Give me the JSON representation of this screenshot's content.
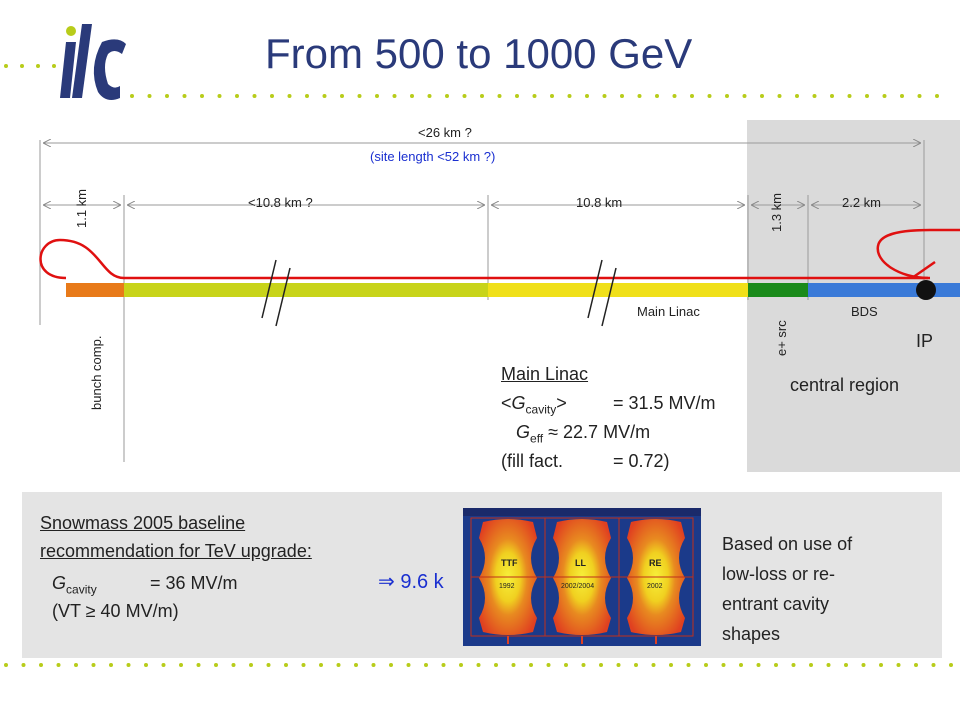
{
  "title": "From 500 to 1000 GeV",
  "logo_text": "ilc",
  "colors": {
    "title": "#2a3a7a",
    "beam_line": "#e01010",
    "bunch_comp": "#e87a1a",
    "main_linac_upgrade": "#c8d41a",
    "main_linac": "#f0e01a",
    "positron_source": "#1a8a1a",
    "bds": "#3a7ad8",
    "dots": "#b8cc1a",
    "highlight_text": "#1a2fd0"
  },
  "diagram": {
    "total_length": "<26 km ?",
    "site_length": "(site length <52 km ?)",
    "seg_bunch_comp_len": "1.1 km",
    "seg_upgrade_len": "<10.8 km ?",
    "seg_main_linac_len": "10.8 km",
    "seg_positron_len": "1.3 km",
    "seg_bds_len": "2.2 km",
    "label_bunch_comp": "bunch comp.",
    "label_main_linac": "Main Linac",
    "label_positron": "e+ src",
    "label_bds": "BDS",
    "label_ip": "IP",
    "label_central": "central region"
  },
  "main_linac_box": {
    "heading": "Main Linac",
    "gcav_sym": "G",
    "gcav_sub": "cavity",
    "gcav_val": "= 31.5 MV/m",
    "geff_sym": "G",
    "geff_sub": "eff",
    "geff_val": "≈ 22.7 MV/m",
    "fill_label": "(fill fact.",
    "fill_val": "= 0.72)"
  },
  "snowmass": {
    "line1": "Snowmass 2005 baseline",
    "line2": "recommendation for TeV upgrade:",
    "gcav_sym": "G",
    "gcav_sub": "cavity",
    "gcav_val": "= 36 MV/m",
    "result": "⇒ 9.6 k",
    "vt": "(VT ≥ 40 MV/m)"
  },
  "cavity_image": {
    "labels": [
      "TTF",
      "LL",
      "RE"
    ],
    "years": [
      "1992",
      "2002/2004",
      "2002"
    ]
  },
  "note": {
    "lines": [
      "Based on use of",
      "low-loss or re-",
      "entrant cavity",
      "shapes"
    ]
  }
}
